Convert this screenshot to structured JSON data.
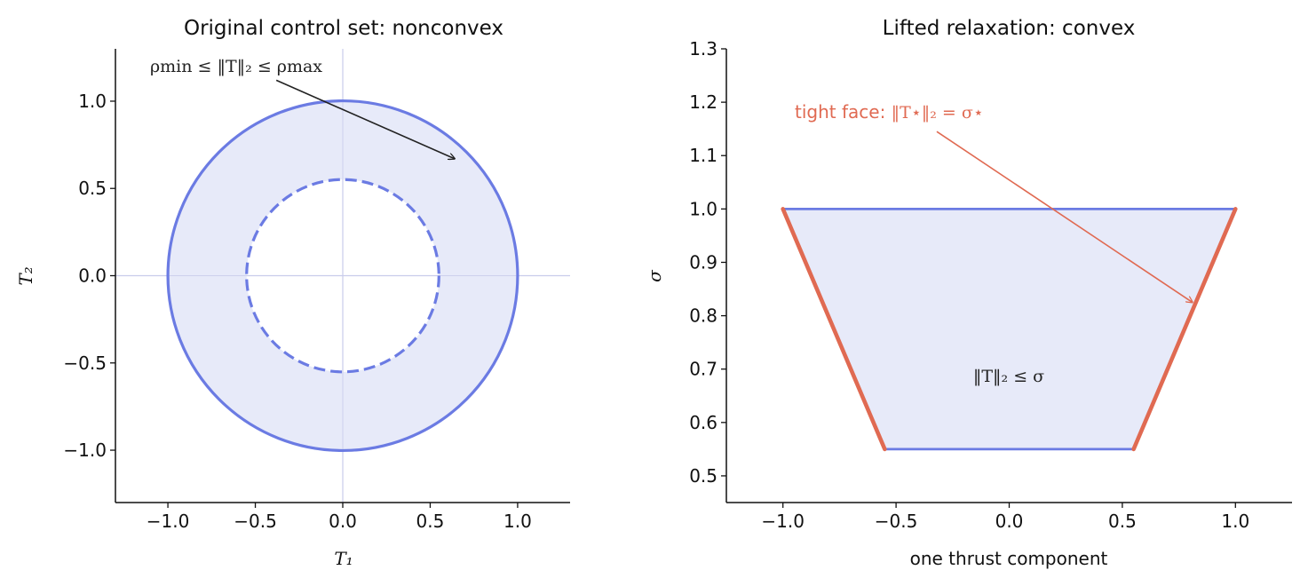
{
  "colors": {
    "boundary": "#6b7be3",
    "fill": "#e3e6f8",
    "tight": "#e06a52",
    "axis": "#111111",
    "crosshair": "#c9cceb",
    "arrow1": "#222222"
  },
  "chart_data": [
    {
      "type": "area",
      "title": "Original control set: nonconvex",
      "xlabel": "T₁",
      "ylabel": "T₂",
      "xlim": [
        -1.3,
        1.3
      ],
      "ylim": [
        -1.3,
        1.3
      ],
      "xticks": [
        -1.0,
        -0.5,
        0.0,
        0.5,
        1.0
      ],
      "yticks": [
        -1.0,
        -0.5,
        0.0,
        0.5,
        1.0
      ],
      "xtick_labels": [
        "−1.0",
        "−0.5",
        "0.0",
        "0.5",
        "1.0"
      ],
      "ytick_labels": [
        "−1.0",
        "−0.5",
        "0.0",
        "0.5",
        "1.0"
      ],
      "rho_min": 0.55,
      "rho_max": 1.0,
      "annotation": {
        "text": "ρmin ≤ ‖T‖₂ ≤ ρmax",
        "text_at": [
          -0.38,
          1.12
        ],
        "arrow_to": [
          0.64,
          0.67
        ]
      }
    },
    {
      "type": "area",
      "title": "Lifted relaxation: convex",
      "xlabel": "one thrust component",
      "ylabel": "σ",
      "xlim": [
        -1.25,
        1.25
      ],
      "ylim": [
        0.45,
        1.3
      ],
      "xticks": [
        -1.0,
        -0.5,
        0.0,
        0.5,
        1.0
      ],
      "yticks": [
        0.5,
        0.6,
        0.7,
        0.8,
        0.9,
        1.0,
        1.1,
        1.2,
        1.3
      ],
      "xtick_labels": [
        "−1.0",
        "−0.5",
        "0.0",
        "0.5",
        "1.0"
      ],
      "ytick_labels": [
        "0.5",
        "0.6",
        "0.7",
        "0.8",
        "0.9",
        "1.0",
        "1.1",
        "1.2",
        "1.3"
      ],
      "polygon": [
        [
          -1.0,
          1.0
        ],
        [
          1.0,
          1.0
        ],
        [
          0.55,
          0.55
        ],
        [
          -0.55,
          0.55
        ]
      ],
      "region_label": {
        "text": "‖T‖₂ ≤ σ",
        "at": [
          0.0,
          0.68
        ]
      },
      "annotation": {
        "text_prefix": "tight face: ",
        "text_math": "‖T⋆‖₂ = σ⋆",
        "text_at": [
          -0.95,
          1.175
        ],
        "arrow_from": [
          -0.32,
          1.145
        ],
        "arrow_to": [
          0.81,
          0.825
        ]
      }
    }
  ]
}
